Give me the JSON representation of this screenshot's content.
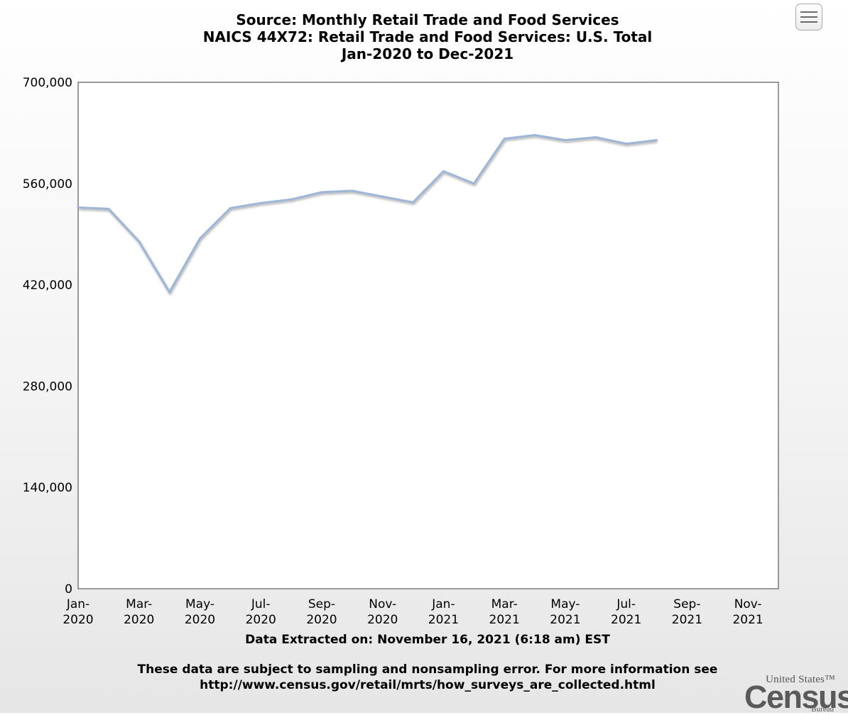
{
  "title_lines": [
    "Source: Monthly Retail Trade and Food Services",
    "NAICS 44X72: Retail Trade and Food Services: U.S. Total",
    "Jan-2020 to Dec-2021"
  ],
  "footer": {
    "extracted": "Data Extracted on: November 16, 2021 (6:18 am) EST",
    "note_line1": "These data are subject to sampling and nonsampling error. For more information see",
    "note_line2": "http://www.census.gov/retail/mrts/how_surveys_are_collected.html"
  },
  "logo": {
    "top": "United States™",
    "word": "Census",
    "bottom": "Bureau"
  },
  "menu_icon": "hamburger-menu-icon",
  "colors": {
    "line": "#9db5d6",
    "plot_border": "#7a7a7a"
  },
  "chart_data": {
    "type": "line",
    "title": "Source: Monthly Retail Trade and Food Services",
    "subtitle": "NAICS 44X72: Retail Trade and Food Services: U.S. Total",
    "period": "Jan-2020 to Dec-2021",
    "xlabel": "",
    "ylabel": "",
    "ylim": [
      0,
      700000
    ],
    "yticks": [
      0,
      140000,
      280000,
      420000,
      560000,
      700000
    ],
    "ytick_labels": [
      "0",
      "140,000",
      "280,000",
      "420,000",
      "560,000",
      "700,000"
    ],
    "xticks": [
      {
        "month": "Jan",
        "year": "2020"
      },
      {
        "month": "Mar",
        "year": "2020"
      },
      {
        "month": "May",
        "year": "2020"
      },
      {
        "month": "Jul",
        "year": "2020"
      },
      {
        "month": "Sep",
        "year": "2020"
      },
      {
        "month": "Nov",
        "year": "2020"
      },
      {
        "month": "Jan",
        "year": "2021"
      },
      {
        "month": "Mar",
        "year": "2021"
      },
      {
        "month": "May",
        "year": "2021"
      },
      {
        "month": "Jul",
        "year": "2021"
      },
      {
        "month": "Sep",
        "year": "2021"
      },
      {
        "month": "Nov",
        "year": "2021"
      }
    ],
    "x": [
      "Jan-2020",
      "Feb-2020",
      "Mar-2020",
      "Apr-2020",
      "May-2020",
      "Jun-2020",
      "Jul-2020",
      "Aug-2020",
      "Sep-2020",
      "Oct-2020",
      "Nov-2020",
      "Dec-2020",
      "Jan-2021",
      "Feb-2021",
      "Mar-2021",
      "Apr-2021",
      "May-2021",
      "Jun-2021",
      "Jul-2021",
      "Aug-2021"
    ],
    "series": [
      {
        "values": [
          527000,
          525000,
          480000,
          410000,
          484000,
          526000,
          533000,
          538000,
          548000,
          550000,
          542000,
          534000,
          577000,
          560000,
          622000,
          627000,
          620000,
          624000,
          615000,
          620000
        ]
      }
    ],
    "months_total": 24,
    "grid": false,
    "legend": "none"
  }
}
